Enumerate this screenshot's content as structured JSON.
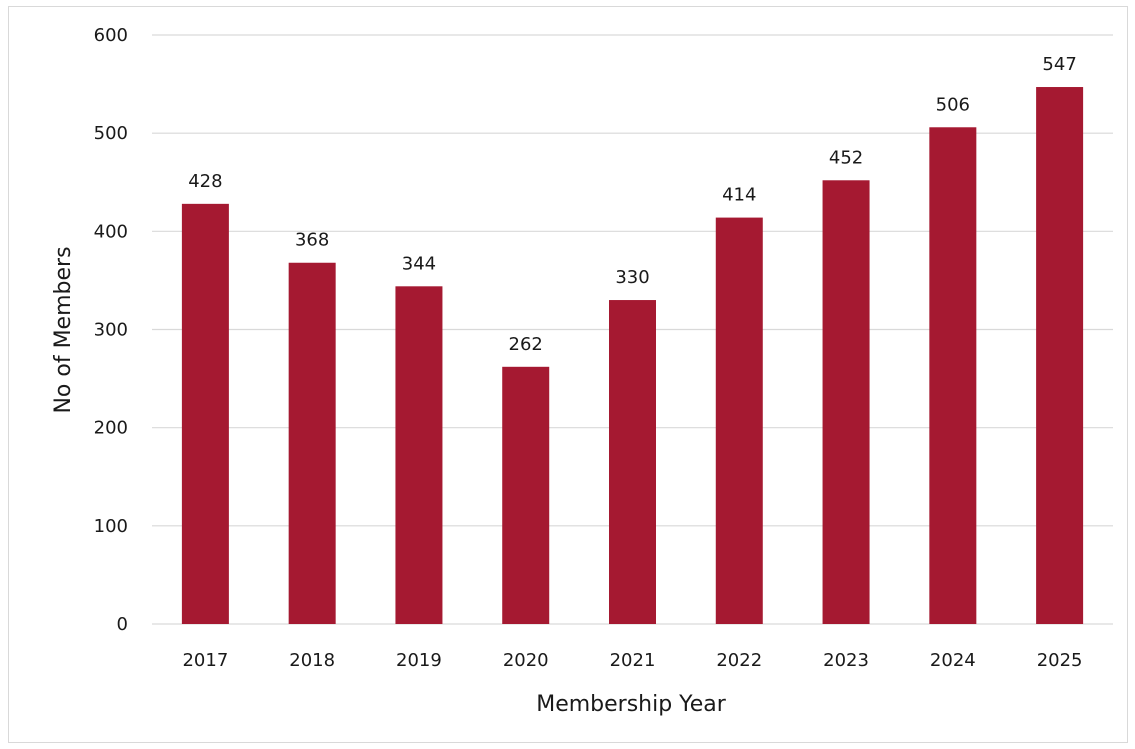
{
  "chart_data": {
    "type": "bar",
    "categories": [
      "2017",
      "2018",
      "2019",
      "2020",
      "2021",
      "2022",
      "2023",
      "2024",
      "2025"
    ],
    "values": [
      428,
      368,
      344,
      262,
      330,
      414,
      452,
      506,
      547
    ],
    "title": "",
    "xlabel": "Membership Year",
    "ylabel": "No of Members",
    "ylim": [
      0,
      600
    ],
    "yticks": [
      "0",
      "100",
      "200",
      "300",
      "400",
      "500",
      "600"
    ],
    "grid": true,
    "legend": "none",
    "bar_color": "#a51931"
  }
}
